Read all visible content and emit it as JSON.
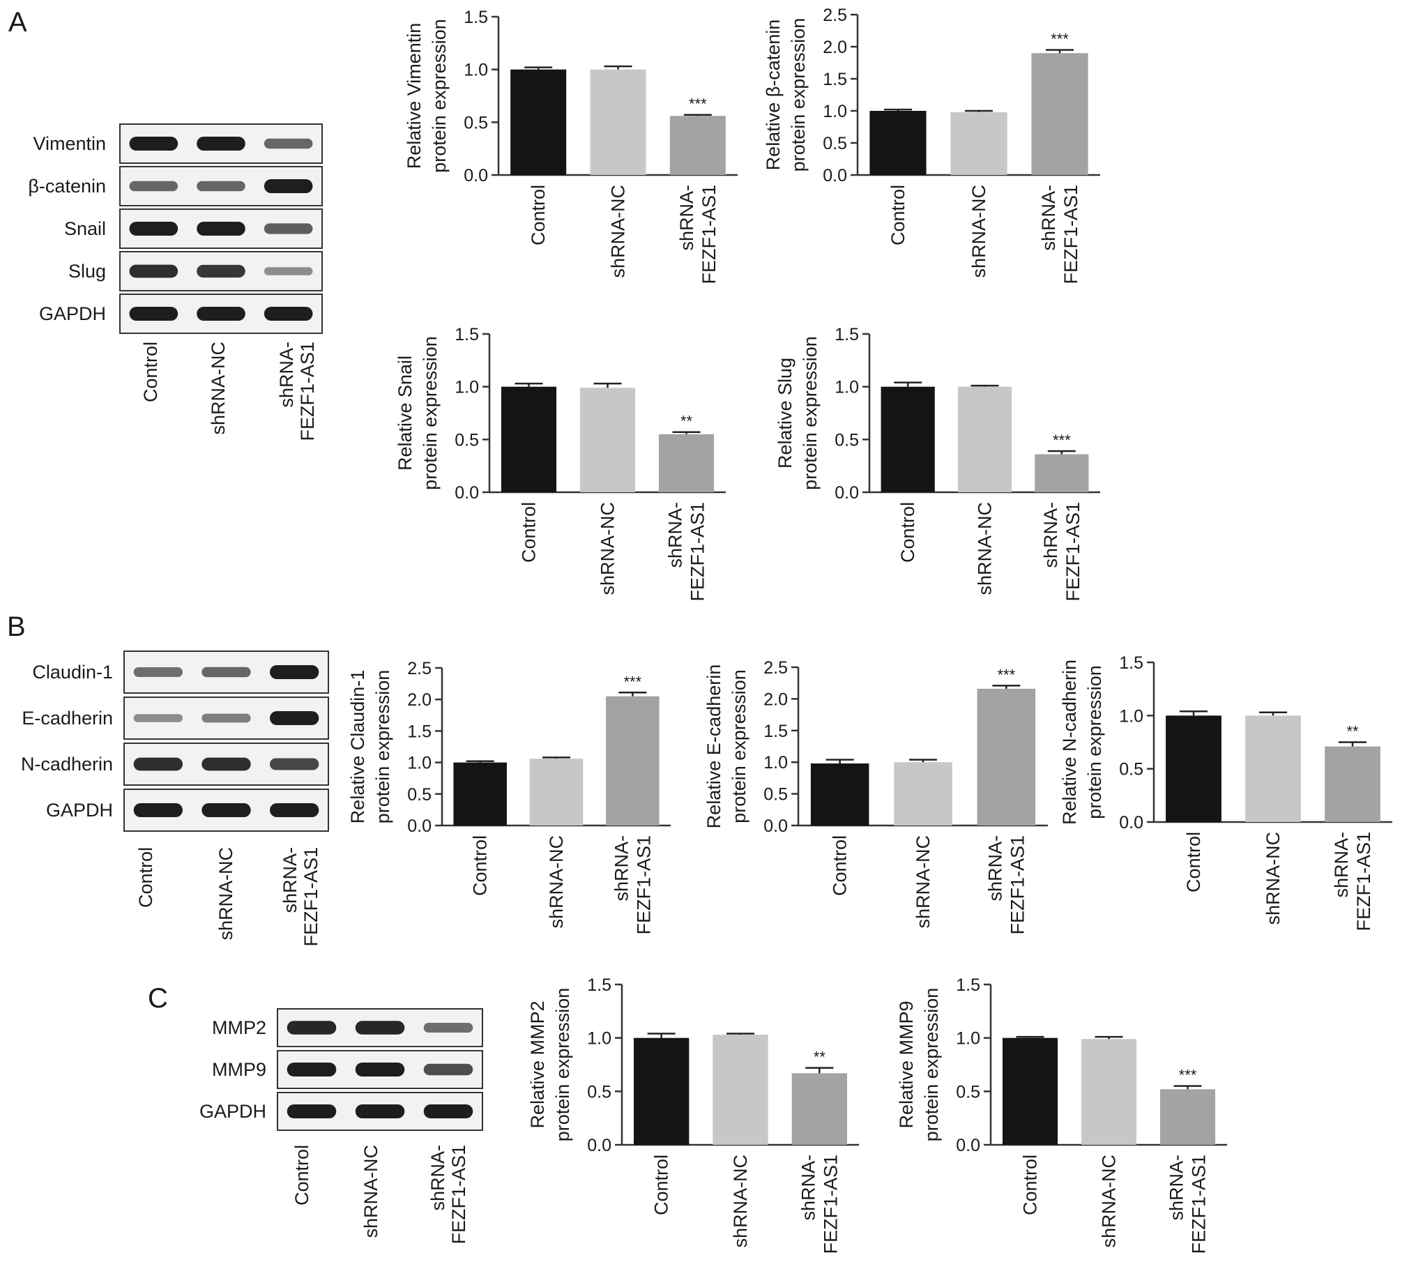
{
  "figure": {
    "panels": [
      "A",
      "B",
      "C"
    ],
    "lanes": [
      "Control",
      "shRNA-NC",
      "shRNA-\nFEZF1-AS1"
    ]
  },
  "colors": {
    "Control": "#141414",
    "shRNA-NC": "#c7c7c7",
    "shRNA-FEZF1-AS1": "#a3a3a3",
    "axis": "#333333",
    "band": "#1e1e1e"
  },
  "blots": [
    {
      "panel": "A",
      "rows": [
        {
          "label": "Vimentin",
          "intensity": [
            1.0,
            1.0,
            0.55
          ]
        },
        {
          "label": "β-catenin",
          "intensity": [
            0.55,
            0.55,
            1.0
          ]
        },
        {
          "label": "Snail",
          "intensity": [
            1.0,
            1.0,
            0.6
          ]
        },
        {
          "label": "Slug",
          "intensity": [
            0.9,
            0.85,
            0.3
          ]
        },
        {
          "label": "GAPDH",
          "intensity": [
            1.0,
            1.0,
            1.0
          ]
        }
      ]
    },
    {
      "panel": "B",
      "rows": [
        {
          "label": "Claudin-1",
          "intensity": [
            0.5,
            0.55,
            1.0
          ]
        },
        {
          "label": "E-cadherin",
          "intensity": [
            0.3,
            0.4,
            1.0
          ]
        },
        {
          "label": "N-cadherin",
          "intensity": [
            0.9,
            0.9,
            0.75
          ]
        },
        {
          "label": "GAPDH",
          "intensity": [
            1.0,
            1.0,
            1.0
          ]
        }
      ]
    },
    {
      "panel": "C",
      "rows": [
        {
          "label": "MMP2",
          "intensity": [
            0.95,
            0.95,
            0.5
          ]
        },
        {
          "label": "MMP9",
          "intensity": [
            1.0,
            1.0,
            0.7
          ]
        },
        {
          "label": "GAPDH",
          "intensity": [
            1.0,
            1.0,
            1.0
          ]
        }
      ]
    }
  ],
  "chart_data": [
    {
      "type": "bar",
      "panel": "A",
      "ylabel": "Relative Vimentin\nprotein expression",
      "categories": [
        "Control",
        "shRNA-NC",
        "shRNA-\nFEZF1-AS1"
      ],
      "values": [
        1.0,
        1.0,
        0.56
      ],
      "errors": [
        0.02,
        0.03,
        0.01
      ],
      "significance": [
        "",
        "",
        "***"
      ],
      "ylim": [
        0,
        1.5
      ],
      "yticks": [
        "0.0",
        "0.5",
        "1.0",
        "1.5"
      ]
    },
    {
      "type": "bar",
      "panel": "A",
      "ylabel": "Relative β-catenin\nprotein expression",
      "categories": [
        "Control",
        "shRNA-NC",
        "shRNA-\nFEZF1-AS1"
      ],
      "values": [
        1.0,
        0.98,
        1.9
      ],
      "errors": [
        0.02,
        0.02,
        0.05
      ],
      "significance": [
        "",
        "",
        "***"
      ],
      "ylim": [
        0,
        2.5
      ],
      "yticks": [
        "0.0",
        "0.5",
        "1.0",
        "1.5",
        "2.0",
        "2.5"
      ]
    },
    {
      "type": "bar",
      "panel": "A",
      "ylabel": "Relative Snail\nprotein expression",
      "categories": [
        "Control",
        "shRNA-NC",
        "shRNA-\nFEZF1-AS1"
      ],
      "values": [
        1.0,
        0.99,
        0.55
      ],
      "errors": [
        0.03,
        0.04,
        0.02
      ],
      "significance": [
        "",
        "",
        "**"
      ],
      "ylim": [
        0,
        1.5
      ],
      "yticks": [
        "0.0",
        "0.5",
        "1.0",
        "1.5"
      ]
    },
    {
      "type": "bar",
      "panel": "A",
      "ylabel": "Relative Slug\nprotein expression",
      "categories": [
        "Control",
        "shRNA-NC",
        "shRNA-\nFEZF1-AS1"
      ],
      "values": [
        1.0,
        1.0,
        0.36
      ],
      "errors": [
        0.04,
        0.01,
        0.03
      ],
      "significance": [
        "",
        "",
        "***"
      ],
      "ylim": [
        0,
        1.5
      ],
      "yticks": [
        "0.0",
        "0.5",
        "1.0",
        "1.5"
      ]
    },
    {
      "type": "bar",
      "panel": "B",
      "ylabel": "Relative Claudin-1\nprotein expression",
      "categories": [
        "Control",
        "shRNA-NC",
        "shRNA-\nFEZF1-AS1"
      ],
      "values": [
        1.0,
        1.06,
        2.05
      ],
      "errors": [
        0.02,
        0.02,
        0.06
      ],
      "significance": [
        "",
        "",
        "***"
      ],
      "ylim": [
        0,
        2.5
      ],
      "yticks": [
        "0.0",
        "0.5",
        "1.0",
        "1.5",
        "2.0",
        "2.5"
      ]
    },
    {
      "type": "bar",
      "panel": "B",
      "ylabel": "Relative E-cadherin\nprotein expression",
      "categories": [
        "Control",
        "shRNA-NC",
        "shRNA-\nFEZF1-AS1"
      ],
      "values": [
        0.98,
        1.0,
        2.16
      ],
      "errors": [
        0.06,
        0.04,
        0.05
      ],
      "significance": [
        "",
        "",
        "***"
      ],
      "ylim": [
        0,
        2.5
      ],
      "yticks": [
        "0.0",
        "0.5",
        "1.0",
        "1.5",
        "2.0",
        "2.5"
      ]
    },
    {
      "type": "bar",
      "panel": "B",
      "ylabel": "Relative N-cadherin\nprotein expression",
      "categories": [
        "Control",
        "shRNA-NC",
        "shRNA-\nFEZF1-AS1"
      ],
      "values": [
        1.0,
        1.0,
        0.71
      ],
      "errors": [
        0.04,
        0.03,
        0.04
      ],
      "significance": [
        "",
        "",
        "**"
      ],
      "ylim": [
        0,
        1.5
      ],
      "yticks": [
        "0.0",
        "0.5",
        "1.0",
        "1.5"
      ]
    },
    {
      "type": "bar",
      "panel": "C",
      "ylabel": "Relative MMP2\nprotein expression",
      "categories": [
        "Control",
        "shRNA-NC",
        "shRNA-\nFEZF1-AS1"
      ],
      "values": [
        1.0,
        1.03,
        0.67
      ],
      "errors": [
        0.04,
        0.01,
        0.05
      ],
      "significance": [
        "",
        "",
        "**"
      ],
      "ylim": [
        0,
        1.5
      ],
      "yticks": [
        "0.0",
        "0.5",
        "1.0",
        "1.5"
      ]
    },
    {
      "type": "bar",
      "panel": "C",
      "ylabel": "Relative MMP9\nprotein expression",
      "categories": [
        "Control",
        "shRNA-NC",
        "shRNA-\nFEZF1-AS1"
      ],
      "values": [
        1.0,
        0.99,
        0.52
      ],
      "errors": [
        0.01,
        0.02,
        0.03
      ],
      "significance": [
        "",
        "",
        "***"
      ],
      "ylim": [
        0,
        1.5
      ],
      "yticks": [
        "0.0",
        "0.5",
        "1.0",
        "1.5"
      ]
    }
  ]
}
